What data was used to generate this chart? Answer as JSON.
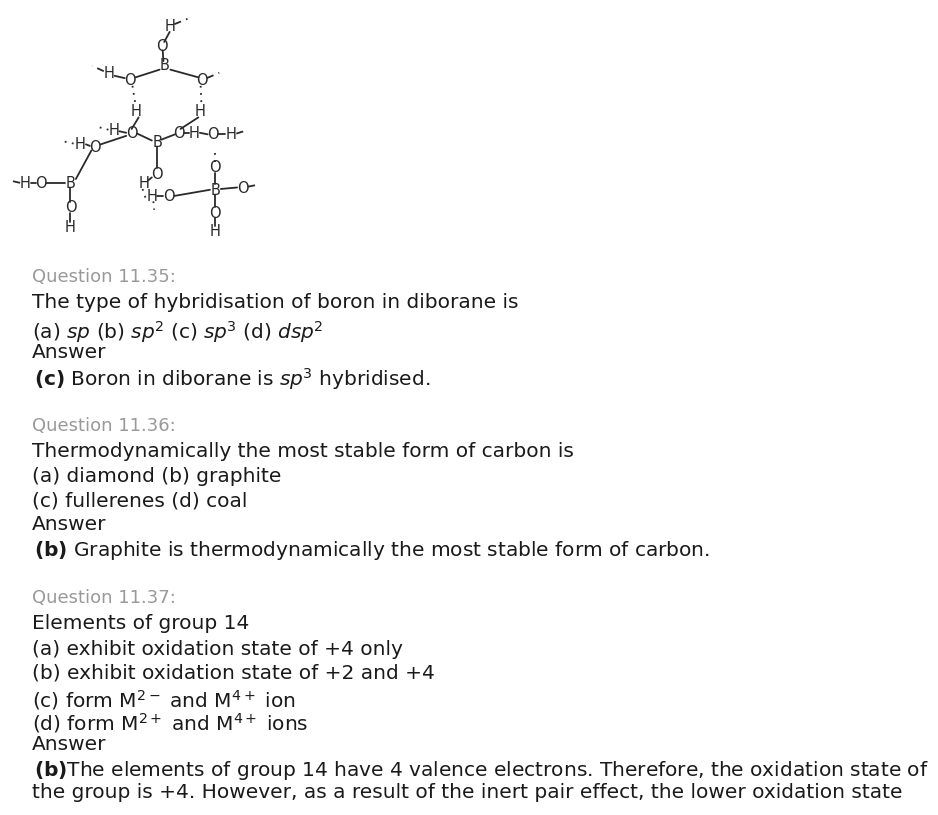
{
  "bg_color": "#ffffff",
  "question_color": "#999999",
  "text_color": "#1a1a1a",
  "bold_color": "#000000",
  "fig_width": 8.12,
  "fig_height": 10.33,
  "q35_header": "Question 11.35:",
  "q35_line1": "The type of hybridisation of boron in diborane is",
  "q35_answer_label": "Answer",
  "q36_header": "Question 11.36:",
  "q36_line1": "Thermodynamically the most stable form of carbon is",
  "q36_line2": "(a) diamond (b) graphite",
  "q36_line3": "(c) fullerenes (d) coal",
  "q36_answer_label": "Answer",
  "q36_answer_rest": " Graphite is thermodynamically the most stable form of carbon.",
  "q37_header": "Question 11.37:",
  "q37_line1": "Elements of group 14",
  "q37_line2": "(a) exhibit oxidation state of +4 only",
  "q37_line3": "(b) exhibit oxidation state of +2 and +4",
  "q37_answer_label": "Answer",
  "q37_answer_p1": "The elements of group 14 have 4 valence electrons. Therefore, the oxidation state of",
  "q37_answer_p2": "the group is +4. However, as a result of the inert pair effect, the lower oxidation state"
}
